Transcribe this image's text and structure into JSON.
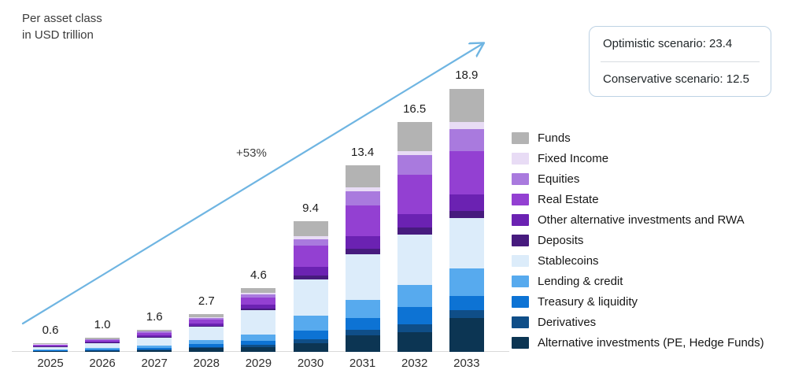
{
  "title": {
    "line1": "Per asset class",
    "line2": "in USD trillion"
  },
  "annotations": {
    "growth_label": "+53%"
  },
  "callout": {
    "optimistic": "Optimistic scenario: 23.4",
    "conservative": "Conservative scenario: 12.5"
  },
  "colors": {
    "arrow": "#6fb5e2",
    "axis_line": "#d9d9d9"
  },
  "chart_data": {
    "type": "bar",
    "stacked": true,
    "title": "Per asset class in USD trillion",
    "xlabel": "",
    "ylabel": "USD trillion",
    "grid": false,
    "legend_position": "right",
    "categories": [
      "2025",
      "2026",
      "2027",
      "2028",
      "2029",
      "2030",
      "2031",
      "2032",
      "2033"
    ],
    "totals": [
      "0.6",
      "1.0",
      "1.6",
      "2.7",
      "4.6",
      "9.4",
      "13.4",
      "16.5",
      "18.9"
    ],
    "growth_annotation": "+53%",
    "scenarios": {
      "optimistic": 23.4,
      "conservative": 12.5
    },
    "series": [
      {
        "name": "Funds",
        "color": "#b3b3b3",
        "values": [
          0.05,
          0.08,
          0.12,
          0.2,
          0.35,
          1.1,
          1.6,
          2.1,
          2.4
        ]
      },
      {
        "name": "Fixed Income",
        "color": "#e8dcf5",
        "values": [
          0.02,
          0.02,
          0.03,
          0.05,
          0.1,
          0.2,
          0.3,
          0.3,
          0.5
        ]
      },
      {
        "name": "Equities",
        "color": "#a97ade",
        "values": [
          0.03,
          0.05,
          0.08,
          0.12,
          0.25,
          0.5,
          1.0,
          1.4,
          1.6
        ]
      },
      {
        "name": "Real Estate",
        "color": "#9340d2",
        "values": [
          0.08,
          0.13,
          0.2,
          0.3,
          0.5,
          1.5,
          2.2,
          2.8,
          3.1
        ]
      },
      {
        "name": "Other alternative investments and RWA",
        "color": "#6b22b2",
        "values": [
          0.04,
          0.06,
          0.09,
          0.15,
          0.3,
          0.6,
          0.9,
          1.0,
          1.2
        ]
      },
      {
        "name": "Deposits",
        "color": "#471b7e",
        "values": [
          0.02,
          0.03,
          0.04,
          0.06,
          0.1,
          0.3,
          0.4,
          0.5,
          0.5
        ]
      },
      {
        "name": "Stablecoins",
        "color": "#dcecfa",
        "values": [
          0.2,
          0.35,
          0.6,
          1.0,
          1.75,
          2.6,
          3.3,
          3.6,
          3.6
        ]
      },
      {
        "name": "Lending & credit",
        "color": "#57aaee",
        "values": [
          0.06,
          0.1,
          0.15,
          0.28,
          0.45,
          1.1,
          1.3,
          1.6,
          2.0
        ]
      },
      {
        "name": "Treasury & liquidity",
        "color": "#0d73d4",
        "values": [
          0.04,
          0.07,
          0.11,
          0.18,
          0.3,
          0.6,
          0.8,
          1.2,
          1.0
        ]
      },
      {
        "name": "Derivatives",
        "color": "#0f4e88",
        "values": [
          0.02,
          0.04,
          0.06,
          0.1,
          0.15,
          0.3,
          0.4,
          0.6,
          0.6
        ]
      },
      {
        "name": "Alternative investments (PE, Hedge Funds)",
        "color": "#0c3553",
        "values": [
          0.04,
          0.07,
          0.12,
          0.26,
          0.35,
          0.6,
          1.2,
          1.4,
          2.4
        ]
      }
    ]
  }
}
